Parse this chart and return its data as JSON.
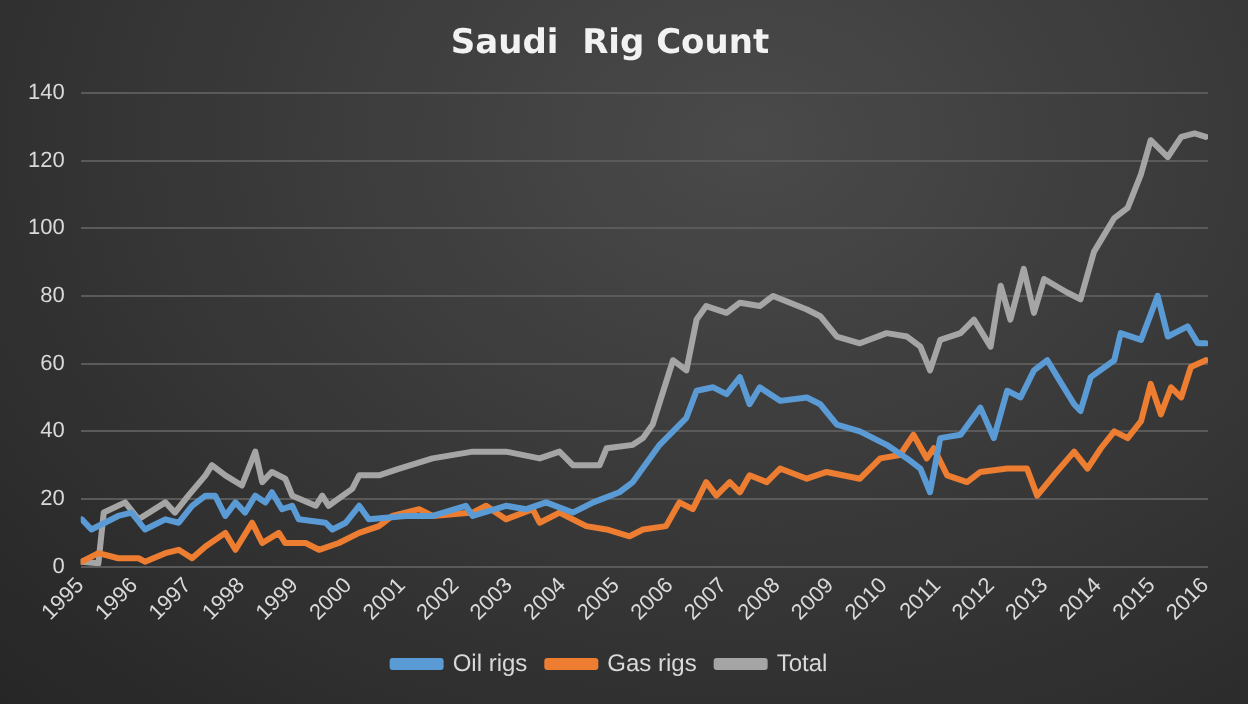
{
  "chart_data": {
    "type": "line",
    "title": "Saudi  Rig Count",
    "xlim": [
      1995,
      2016.05
    ],
    "xticks": [
      1995,
      1996,
      1997,
      1998,
      1999,
      2000,
      2001,
      2002,
      2003,
      2004,
      2005,
      2006,
      2007,
      2008,
      2009,
      2010,
      2011,
      2012,
      2013,
      2014,
      2015,
      2016
    ],
    "ylim": [
      0,
      140
    ],
    "yticks": [
      0,
      20,
      40,
      60,
      80,
      100,
      120,
      140
    ],
    "grid": "y",
    "legend": "bottom",
    "marker": "none",
    "line_style": "solid",
    "series": [
      {
        "name": "Oil rigs",
        "color": "#5b9bd5",
        "x": [
          1995.02,
          1995.2,
          1995.7,
          1995.95,
          1996.2,
          1996.58,
          1996.83,
          1997.08,
          1997.33,
          1997.51,
          1997.7,
          1997.89,
          1998.07,
          1998.26,
          1998.45,
          1998.57,
          1998.76,
          1998.95,
          1999.07,
          1999.57,
          1999.7,
          1999.95,
          2000.2,
          2000.38,
          2001.07,
          2001.57,
          2002.19,
          2002.32,
          2002.94,
          2003.32,
          2003.69,
          2004.19,
          2004.57,
          2005.06,
          2005.31,
          2005.81,
          2006.06,
          2006.31,
          2006.5,
          2006.81,
          2007.06,
          2007.31,
          2007.49,
          2007.68,
          2008.06,
          2008.56,
          2008.81,
          2009.12,
          2009.55,
          2010.05,
          2010.43,
          2010.68,
          2010.86,
          2011.05,
          2011.43,
          2011.8,
          2012.05,
          2012.3,
          2012.55,
          2012.8,
          2013.05,
          2013.24,
          2013.55,
          2013.67,
          2013.86,
          2014.3,
          2014.42,
          2014.8,
          2015.11,
          2015.3,
          2015.67,
          2015.86,
          2016.01
        ],
        "values": [
          14,
          11,
          15,
          16,
          11,
          14,
          13,
          18,
          21,
          21,
          15,
          19,
          16,
          21,
          19,
          22,
          17,
          18,
          14,
          13,
          11,
          13,
          18,
          14,
          15,
          15,
          18,
          15,
          18,
          17,
          19,
          16,
          19,
          22,
          25,
          36,
          40,
          44,
          52,
          53,
          51,
          56,
          48,
          53,
          49,
          50,
          48,
          42,
          40,
          36,
          32,
          29,
          22,
          38,
          39,
          47,
          38,
          52,
          50,
          58,
          61,
          56,
          48,
          46,
          56,
          61,
          69,
          67,
          80,
          68,
          71,
          66,
          66
        ]
      },
      {
        "name": "Gas rigs",
        "color": "#ed7d31",
        "x": [
          1995.02,
          1995.33,
          1995.7,
          1996.08,
          1996.2,
          1996.58,
          1996.83,
          1997.08,
          1997.33,
          1997.7,
          1997.89,
          1998.2,
          1998.39,
          1998.7,
          1998.82,
          1999.2,
          1999.45,
          1999.82,
          2000.2,
          2000.57,
          2000.82,
          2001.32,
          2001.57,
          2002.32,
          2002.57,
          2002.94,
          2003.44,
          2003.57,
          2003.94,
          2004.44,
          2004.82,
          2005.25,
          2005.5,
          2005.93,
          2006.18,
          2006.43,
          2006.68,
          2006.87,
          2007.12,
          2007.31,
          2007.49,
          2007.81,
          2008.06,
          2008.56,
          2008.93,
          2009.55,
          2009.93,
          2010.3,
          2010.55,
          2010.8,
          2010.93,
          2011.18,
          2011.55,
          2011.8,
          2012.3,
          2012.67,
          2012.86,
          2013.17,
          2013.55,
          2013.8,
          2014.05,
          2014.3,
          2014.55,
          2014.8,
          2014.98,
          2015.17,
          2015.36,
          2015.55,
          2015.73,
          2016.01
        ],
        "values": [
          1.5,
          4,
          2.5,
          2.5,
          1.5,
          4,
          5,
          2.5,
          6,
          10,
          5,
          13,
          7,
          10,
          7,
          7,
          5,
          7,
          10,
          12,
          15,
          17,
          15,
          16,
          18,
          14,
          17,
          13,
          16,
          12,
          11,
          9,
          11,
          12,
          19,
          17,
          25,
          21,
          25,
          22,
          27,
          25,
          29,
          26,
          28,
          26,
          32,
          33,
          39,
          32,
          35,
          27,
          25,
          28,
          29,
          29,
          21,
          27,
          34,
          29,
          35,
          40,
          38,
          43,
          54,
          45,
          53,
          50,
          59,
          61
        ]
      },
      {
        "name": "Total",
        "color": "#a5a5a5",
        "x": [
          1995.02,
          1995.33,
          1995.43,
          1995.83,
          1996.08,
          1996.58,
          1996.76,
          1997.01,
          1997.33,
          1997.45,
          1997.7,
          1998.01,
          1998.26,
          1998.39,
          1998.57,
          1998.82,
          1998.95,
          1999.39,
          1999.51,
          1999.63,
          2000.07,
          2000.2,
          2000.57,
          2000.95,
          2001.57,
          2002.32,
          2002.94,
          2003.57,
          2003.94,
          2004.19,
          2004.69,
          2004.82,
          2005.31,
          2005.5,
          2005.68,
          2006.06,
          2006.31,
          2006.5,
          2006.68,
          2007.06,
          2007.31,
          2007.68,
          2007.93,
          2008.56,
          2008.81,
          2009.12,
          2009.55,
          2010.05,
          2010.43,
          2010.68,
          2010.86,
          2011.05,
          2011.43,
          2011.68,
          2011.99,
          2012.18,
          2012.36,
          2012.61,
          2012.8,
          2012.99,
          2013.42,
          2013.67,
          2013.92,
          2014.3,
          2014.55,
          2014.8,
          2014.98,
          2015.3,
          2015.55,
          2015.8,
          2016.01
        ],
        "values": [
          1.5,
          1,
          16,
          19,
          14,
          19,
          16,
          21,
          27,
          30,
          27,
          24,
          34,
          25,
          28,
          26,
          21,
          18,
          21,
          18,
          23,
          27,
          27,
          29,
          32,
          34,
          34,
          32,
          34,
          30,
          30,
          35,
          36,
          38,
          42,
          61,
          58,
          73,
          77,
          75,
          78,
          77,
          80,
          76,
          74,
          68,
          66,
          69,
          68,
          65,
          58,
          67,
          69,
          73,
          65,
          83,
          73,
          88,
          75,
          85,
          81,
          79,
          93,
          103,
          106,
          116,
          126,
          121,
          127,
          128,
          127
        ]
      }
    ]
  }
}
